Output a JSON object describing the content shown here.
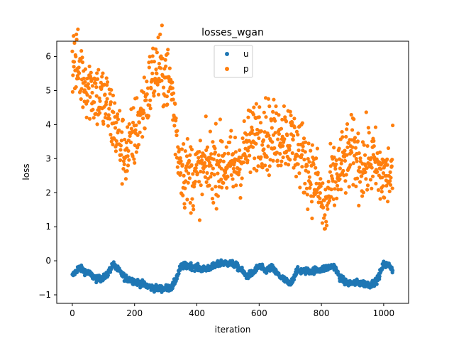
{
  "chart_data": {
    "type": "scatter",
    "title": "losses_wgan",
    "xlabel": "iteration",
    "ylabel": "loss",
    "xlim": [
      -50,
      1080
    ],
    "ylim": [
      -1.25,
      6.45
    ],
    "xticks": [
      0,
      200,
      400,
      600,
      800,
      1000
    ],
    "yticks": [
      -1,
      0,
      1,
      2,
      3,
      4,
      5,
      6
    ],
    "grid": false,
    "legend_position": "top-center",
    "n_points": 1030,
    "series": [
      {
        "name": "u",
        "color": "#1f77b4",
        "keypoints": [
          [
            0,
            -0.45
          ],
          [
            20,
            -0.2
          ],
          [
            50,
            -0.35
          ],
          [
            80,
            -0.55
          ],
          [
            110,
            -0.45
          ],
          [
            130,
            -0.1
          ],
          [
            150,
            -0.3
          ],
          [
            170,
            -0.5
          ],
          [
            200,
            -0.6
          ],
          [
            230,
            -0.7
          ],
          [
            260,
            -0.8
          ],
          [
            290,
            -0.82
          ],
          [
            320,
            -0.78
          ],
          [
            330,
            -0.6
          ],
          [
            350,
            -0.15
          ],
          [
            380,
            -0.15
          ],
          [
            420,
            -0.25
          ],
          [
            460,
            -0.15
          ],
          [
            480,
            -0.05
          ],
          [
            520,
            -0.1
          ],
          [
            540,
            -0.25
          ],
          [
            560,
            -0.45
          ],
          [
            580,
            -0.35
          ],
          [
            600,
            -0.15
          ],
          [
            620,
            -0.3
          ],
          [
            640,
            -0.2
          ],
          [
            660,
            -0.4
          ],
          [
            680,
            -0.55
          ],
          [
            700,
            -0.7
          ],
          [
            720,
            -0.3
          ],
          [
            760,
            -0.3
          ],
          [
            800,
            -0.25
          ],
          [
            840,
            -0.15
          ],
          [
            860,
            -0.5
          ],
          [
            880,
            -0.65
          ],
          [
            920,
            -0.65
          ],
          [
            960,
            -0.7
          ],
          [
            980,
            -0.55
          ],
          [
            1000,
            -0.1
          ],
          [
            1020,
            -0.15
          ],
          [
            1030,
            -0.3
          ]
        ],
        "spread": 0.07
      },
      {
        "name": "p",
        "color": "#ff7f0e",
        "keypoints": [
          [
            0,
            5.95
          ],
          [
            20,
            5.6
          ],
          [
            50,
            5.2
          ],
          [
            80,
            4.9
          ],
          [
            110,
            4.6
          ],
          [
            140,
            3.9
          ],
          [
            160,
            3.3
          ],
          [
            180,
            3.2
          ],
          [
            210,
            4.0
          ],
          [
            240,
            4.8
          ],
          [
            260,
            5.5
          ],
          [
            280,
            5.6
          ],
          [
            300,
            5.5
          ],
          [
            320,
            5.0
          ],
          [
            340,
            3.2
          ],
          [
            360,
            2.6
          ],
          [
            400,
            2.5
          ],
          [
            440,
            2.8
          ],
          [
            480,
            2.9
          ],
          [
            520,
            2.7
          ],
          [
            560,
            3.3
          ],
          [
            600,
            3.9
          ],
          [
            640,
            3.6
          ],
          [
            680,
            3.8
          ],
          [
            700,
            3.6
          ],
          [
            730,
            3.2
          ],
          [
            760,
            2.7
          ],
          [
            790,
            2.2
          ],
          [
            810,
            1.3
          ],
          [
            830,
            2.2
          ],
          [
            860,
            2.7
          ],
          [
            900,
            3.2
          ],
          [
            930,
            2.8
          ],
          [
            960,
            3.0
          ],
          [
            990,
            2.5
          ],
          [
            1030,
            2.5
          ]
        ],
        "spread": 0.75
      }
    ]
  }
}
